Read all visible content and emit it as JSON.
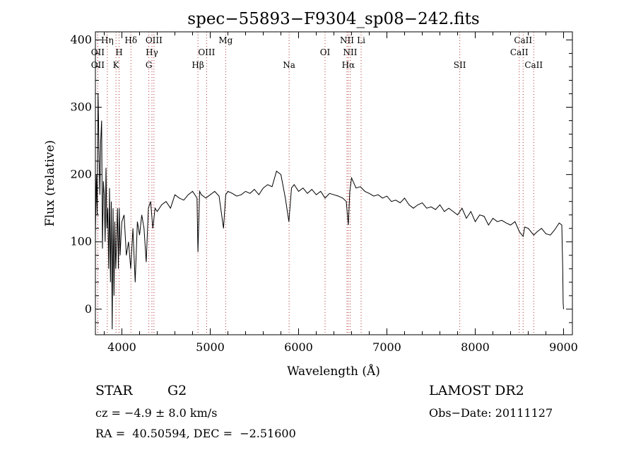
{
  "chart_data": {
    "type": "line",
    "title": "spec−55893−F9304_sp08−242.fits",
    "xlabel": "Wavelength (Å)",
    "ylabel": "Flux (relative)",
    "xlim": [
      3700,
      9100
    ],
    "ylim": [
      -38,
      412
    ],
    "x_ticks": [
      4000,
      5000,
      6000,
      7000,
      8000,
      9000
    ],
    "y_ticks": [
      0,
      100,
      200,
      300,
      400
    ],
    "grid": false,
    "line_color": "#000000",
    "marker_color": "#b03030",
    "series": [
      {
        "x": [
          3700,
          3710,
          3720,
          3730,
          3740,
          3750,
          3760,
          3770,
          3780,
          3790,
          3800,
          3810,
          3820,
          3830,
          3840,
          3850,
          3860,
          3870,
          3880,
          3890,
          3900,
          3910,
          3920,
          3930,
          3940,
          3950,
          3960,
          3970,
          3980,
          3990,
          4000,
          4025,
          4050,
          4075,
          4100,
          4125,
          4150,
          4175,
          4200,
          4225,
          4250,
          4275,
          4300,
          4325,
          4350,
          4375,
          4400,
          4450,
          4500,
          4550,
          4600,
          4650,
          4700,
          4750,
          4800,
          4850,
          4861,
          4880,
          4900,
          4950,
          5000,
          5050,
          5100,
          5150,
          5175,
          5200,
          5250,
          5300,
          5350,
          5400,
          5450,
          5500,
          5550,
          5600,
          5650,
          5700,
          5750,
          5800,
          5850,
          5890,
          5920,
          5950,
          6000,
          6050,
          6100,
          6150,
          6200,
          6250,
          6300,
          6350,
          6400,
          6450,
          6500,
          6540,
          6563,
          6580,
          6600,
          6650,
          6700,
          6750,
          6800,
          6850,
          6900,
          6950,
          7000,
          7050,
          7100,
          7150,
          7200,
          7250,
          7300,
          7350,
          7400,
          7450,
          7500,
          7550,
          7600,
          7650,
          7700,
          7750,
          7800,
          7850,
          7900,
          7950,
          8000,
          8050,
          8100,
          8150,
          8200,
          8250,
          8300,
          8350,
          8400,
          8450,
          8500,
          8542,
          8560,
          8600,
          8662,
          8700,
          8750,
          8800,
          8850,
          8900,
          8950,
          8980,
          8990,
          8995,
          9000
        ],
        "y": [
          110,
          200,
          140,
          320,
          240,
          170,
          250,
          280,
          90,
          190,
          170,
          100,
          210,
          120,
          150,
          60,
          180,
          40,
          160,
          -30,
          150,
          20,
          130,
          60,
          100,
          150,
          60,
          150,
          80,
          110,
          130,
          140,
          80,
          100,
          60,
          120,
          40,
          130,
          110,
          140,
          120,
          70,
          150,
          160,
          120,
          150,
          145,
          155,
          160,
          150,
          170,
          165,
          162,
          170,
          175,
          165,
          85,
          175,
          170,
          165,
          170,
          175,
          168,
          120,
          170,
          175,
          172,
          168,
          170,
          175,
          172,
          178,
          170,
          180,
          185,
          182,
          205,
          200,
          165,
          130,
          180,
          185,
          175,
          180,
          172,
          178,
          170,
          175,
          165,
          172,
          170,
          168,
          165,
          160,
          125,
          175,
          195,
          180,
          182,
          175,
          172,
          168,
          170,
          165,
          168,
          160,
          162,
          158,
          165,
          155,
          150,
          155,
          158,
          150,
          152,
          148,
          155,
          145,
          150,
          145,
          140,
          150,
          135,
          145,
          130,
          140,
          138,
          125,
          135,
          130,
          132,
          128,
          125,
          130,
          115,
          108,
          122,
          120,
          110,
          115,
          120,
          112,
          110,
          118,
          128,
          125,
          60,
          10,
          0
        ]
      }
    ],
    "line_markers": [
      {
        "label": "OII",
        "x": 3727,
        "row": 2
      },
      {
        "label": "OII",
        "x": 3727,
        "row": 3
      },
      {
        "label": "Hη",
        "x": 3835,
        "row": 1
      },
      {
        "label": "H",
        "x": 3968,
        "row": 2
      },
      {
        "label": "K",
        "x": 3933,
        "row": 3
      },
      {
        "label": "Hδ",
        "x": 4102,
        "row": 1
      },
      {
        "label": "OIII",
        "x": 4363,
        "row": 1
      },
      {
        "label": "Hγ",
        "x": 4340,
        "row": 2
      },
      {
        "label": "G",
        "x": 4305,
        "row": 3
      },
      {
        "label": "Hβ",
        "x": 4861,
        "row": 3
      },
      {
        "label": "OIII",
        "x": 4959,
        "row": 2
      },
      {
        "label": "Mg",
        "x": 5175,
        "row": 1
      },
      {
        "label": "Na",
        "x": 5893,
        "row": 3
      },
      {
        "label": "OI",
        "x": 6300,
        "row": 2
      },
      {
        "label": "NII",
        "x": 6548,
        "row": 1
      },
      {
        "label": "NII",
        "x": 6584,
        "row": 2
      },
      {
        "label": "Hα",
        "x": 6563,
        "row": 3
      },
      {
        "label": "Li",
        "x": 6708,
        "row": 1
      },
      {
        "label": "SII",
        "x": 7825,
        "row": 3
      },
      {
        "label": "CaII",
        "x": 8542,
        "row": 1
      },
      {
        "label": "CaII",
        "x": 8498,
        "row": 2
      },
      {
        "label": "CaII",
        "x": 8662,
        "row": 3
      }
    ]
  },
  "info": {
    "class": "STAR",
    "subclass": "G2",
    "survey": "LAMOST DR2",
    "cz": "cz = −4.9 ± 8.0 km/s",
    "obs_date": "Obs−Date: 20111127",
    "coords": "RA =  40.50594, DEC =  −2.51600"
  }
}
